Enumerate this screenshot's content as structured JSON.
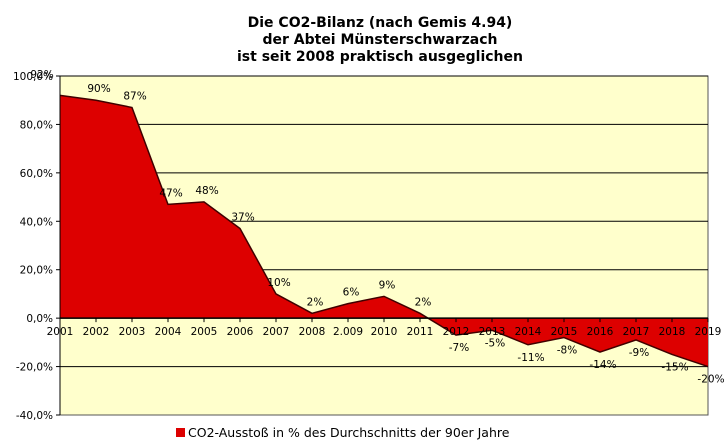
{
  "chart_data": {
    "type": "area",
    "title": [
      "Die CO2-Bilanz (nach Gemis 4.94)",
      "der Abtei Münsterschwarzach",
      "ist seit 2008 praktisch ausgeglichen"
    ],
    "categories": [
      "2001",
      "2002",
      "2003",
      "2004",
      "2005",
      "2006",
      "2007",
      "2008",
      "2.009",
      "2010",
      "2011",
      "2012",
      "2013",
      "2014",
      "2015",
      "2016",
      "2017",
      "2018",
      "2019"
    ],
    "series": [
      {
        "name": "CO2-Ausstoß in % des Durchschnitts der 90er Jahre",
        "values": [
          92,
          90,
          87,
          47,
          48,
          37,
          10,
          2,
          6,
          9,
          2,
          -7,
          -5,
          -11,
          -8,
          -14,
          -9,
          -15,
          -20
        ],
        "labels": [
          "92%",
          "90%",
          "87%",
          "47%",
          "48%",
          "37%",
          "10%",
          "2%",
          "6%",
          "9%",
          "2%",
          "-7%",
          "-5%",
          "-11%",
          "-8%",
          "-14%",
          "-9%",
          "-15%",
          "-20%"
        ],
        "color": "#dd0000"
      }
    ],
    "xlabel": "",
    "ylabel": "",
    "ylim": [
      -40,
      100
    ],
    "yticks": [
      -40,
      -20,
      0,
      20,
      40,
      60,
      80,
      100
    ],
    "ytick_labels": [
      "-40,0%",
      "-20,0%",
      "0,0%",
      "20,0%",
      "40,0%",
      "60,0%",
      "80,0%",
      "100,0%"
    ],
    "grid": true,
    "legend_position": "bottom",
    "plot_background": "#ffffcc"
  }
}
